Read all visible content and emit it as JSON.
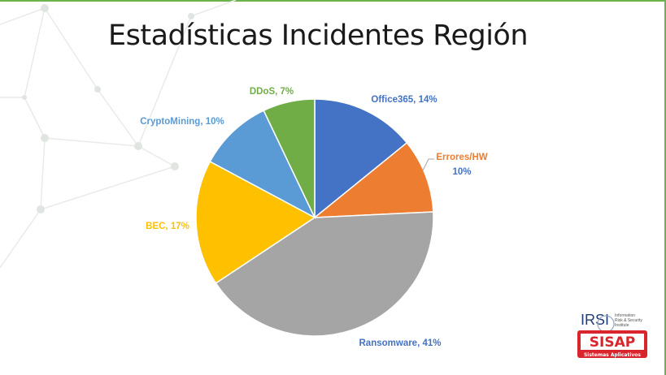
{
  "slide": {
    "title": "Estadísticas Incidentes Región"
  },
  "chart_data": {
    "type": "pie",
    "title": "Estadísticas Incidentes Región",
    "slices": [
      {
        "label": "Office365",
        "value": 14,
        "label_text": "Office365, 14%",
        "color": "#4472c4"
      },
      {
        "label": "Errores/HW",
        "value": 10,
        "label_text": "Errores/HW",
        "label_text2": "10%",
        "color": "#ed7d31"
      },
      {
        "label": "Ransomware",
        "value": 41,
        "label_text": "Ransomware, 41%",
        "color": "#a5a5a5"
      },
      {
        "label": "BEC",
        "value": 17,
        "label_text": "BEC, 17%",
        "color": "#ffc000"
      },
      {
        "label": "CryptoMining",
        "value": 10,
        "label_text": "CryptoMining, 10%",
        "color": "#5b9bd5"
      },
      {
        "label": "DDoS",
        "value": 7,
        "label_text": "DDoS, 7%",
        "color": "#70ad47"
      }
    ],
    "start_angle": "12 o'clock",
    "direction": "clockwise"
  },
  "logo": {
    "irsi_text": "IRSI",
    "irsi_tagline": "Information Risk & Security Institute",
    "sisap_text": "SISAP",
    "sisap_subtitle": "Sistemas Aplicativos",
    "brand_red": "#d9262c",
    "brand_blue": "#1f3d7a"
  }
}
